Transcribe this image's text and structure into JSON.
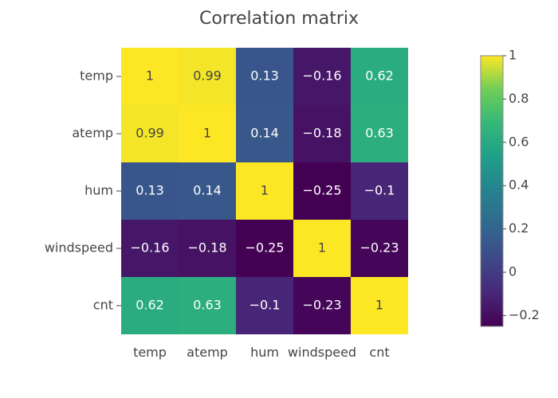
{
  "chart_data": {
    "type": "heatmap",
    "title": "Correlation matrix",
    "x_categories": [
      "temp",
      "atemp",
      "hum",
      "windspeed",
      "cnt"
    ],
    "y_categories": [
      "temp",
      "atemp",
      "hum",
      "windspeed",
      "cnt"
    ],
    "values": [
      [
        1,
        0.99,
        0.13,
        -0.16,
        0.62
      ],
      [
        0.99,
        1,
        0.14,
        -0.18,
        0.63
      ],
      [
        0.13,
        0.14,
        1,
        -0.25,
        -0.1
      ],
      [
        -0.16,
        -0.18,
        -0.25,
        1,
        -0.23
      ],
      [
        0.62,
        0.63,
        -0.1,
        -0.23,
        1
      ]
    ],
    "cell_labels": [
      [
        "1",
        "0.99",
        "0.13",
        "−0.16",
        "0.62"
      ],
      [
        "0.99",
        "1",
        "0.14",
        "−0.18",
        "0.63"
      ],
      [
        "0.13",
        "0.14",
        "1",
        "−0.25",
        "−0.1"
      ],
      [
        "−0.16",
        "−0.18",
        "−0.25",
        "1",
        "−0.23"
      ],
      [
        "0.62",
        "0.63",
        "−0.1",
        "−0.23",
        "1"
      ]
    ],
    "colorbar": {
      "min": -0.25,
      "max": 1,
      "tick_values": [
        1,
        0.8,
        0.6,
        0.4,
        0.2,
        0,
        -0.2
      ],
      "tick_labels": [
        "1",
        "0.8",
        "0.6",
        "0.4",
        "0.2",
        "0",
        "−0.2"
      ]
    },
    "colorscale": "Viridis",
    "legend": false,
    "grid": false
  }
}
